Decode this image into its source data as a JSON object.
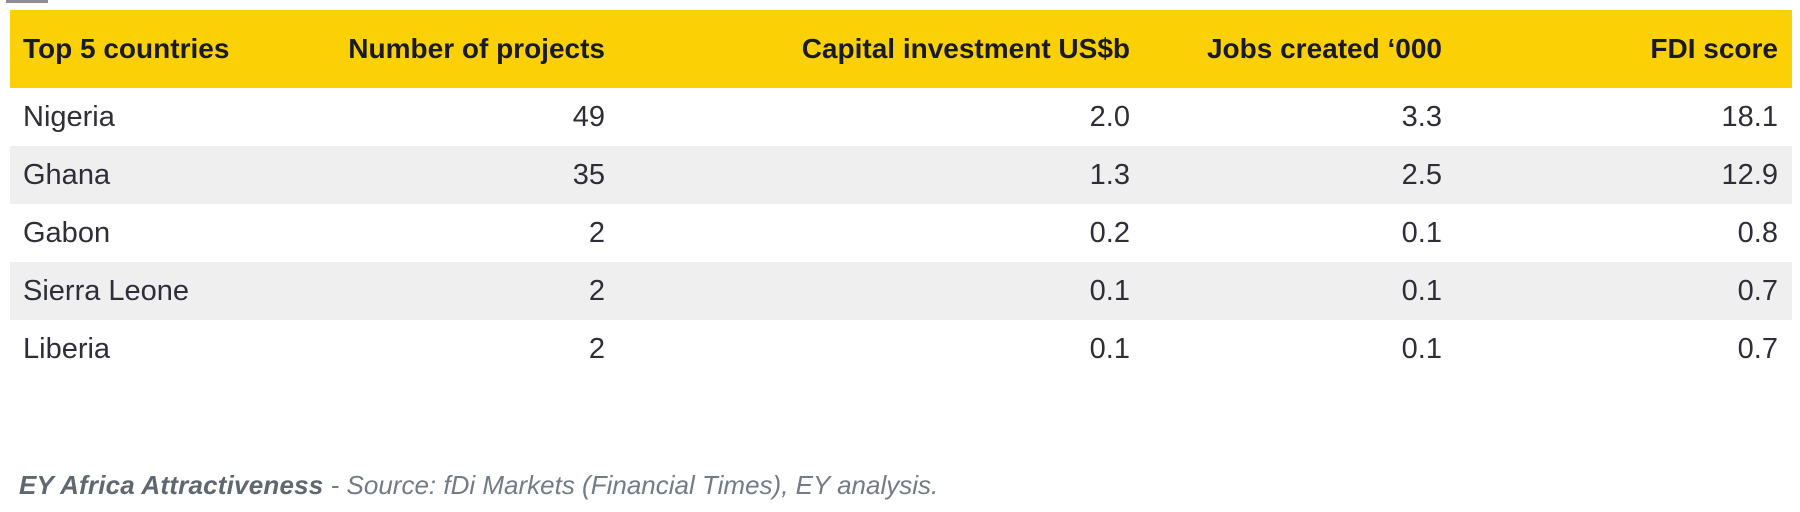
{
  "table": {
    "columns": [
      {
        "label": "Top 5 countries"
      },
      {
        "label": "Number of projects"
      },
      {
        "label": "Capital investment US$b"
      },
      {
        "label": "Jobs created ‘000"
      },
      {
        "label": "FDI score"
      }
    ],
    "rows": [
      [
        "Nigeria",
        "49",
        "2.0",
        "3.3",
        "18.1"
      ],
      [
        "Ghana",
        "35",
        "1.3",
        "2.5",
        "12.9"
      ],
      [
        "Gabon",
        "2",
        "0.2",
        "0.1",
        "0.8"
      ],
      [
        "Sierra Leone",
        "2",
        "0.1",
        "0.1",
        "0.7"
      ],
      [
        "Liberia",
        "2",
        "0.1",
        "0.1",
        "0.7"
      ]
    ]
  },
  "footer": {
    "source_label": "EY Africa Attractiveness",
    "source_rest": " - Source: fDi Markets (Financial Times), EY analysis."
  },
  "colors": {
    "header_bg": "#FBD105",
    "header_text": "#1A1A24",
    "body_text": "#2E2E38",
    "row_alt_bg": "#EFEFF0",
    "footer_bold_text": "#5F6770",
    "footer_text": "#737B85"
  },
  "chart_data": {
    "type": "table",
    "title": "",
    "columns": [
      "Top 5 countries",
      "Number of projects",
      "Capital investment US$b",
      "Jobs created ‘000",
      "FDI score"
    ],
    "rows": [
      {
        "country": "Nigeria",
        "number_of_projects": 49,
        "capital_investment_usd_b": 2.0,
        "jobs_created_000": 3.3,
        "fdi_score": 18.1
      },
      {
        "country": "Ghana",
        "number_of_projects": 35,
        "capital_investment_usd_b": 1.3,
        "jobs_created_000": 2.5,
        "fdi_score": 12.9
      },
      {
        "country": "Gabon",
        "number_of_projects": 2,
        "capital_investment_usd_b": 0.2,
        "jobs_created_000": 0.1,
        "fdi_score": 0.8
      },
      {
        "country": "Sierra Leone",
        "number_of_projects": 2,
        "capital_investment_usd_b": 0.1,
        "jobs_created_000": 0.1,
        "fdi_score": 0.7
      },
      {
        "country": "Liberia",
        "number_of_projects": 2,
        "capital_investment_usd_b": 0.1,
        "jobs_created_000": 0.1,
        "fdi_score": 0.7
      }
    ],
    "layout_hints": {
      "header_style": "yellow band, bold black text",
      "zebra_striping": "rows 2 and 4 light gray",
      "numeric_columns_alignment": "right",
      "source_note": "EY Africa Attractiveness - Source: fDi Markets (Financial Times), EY analysis."
    }
  }
}
